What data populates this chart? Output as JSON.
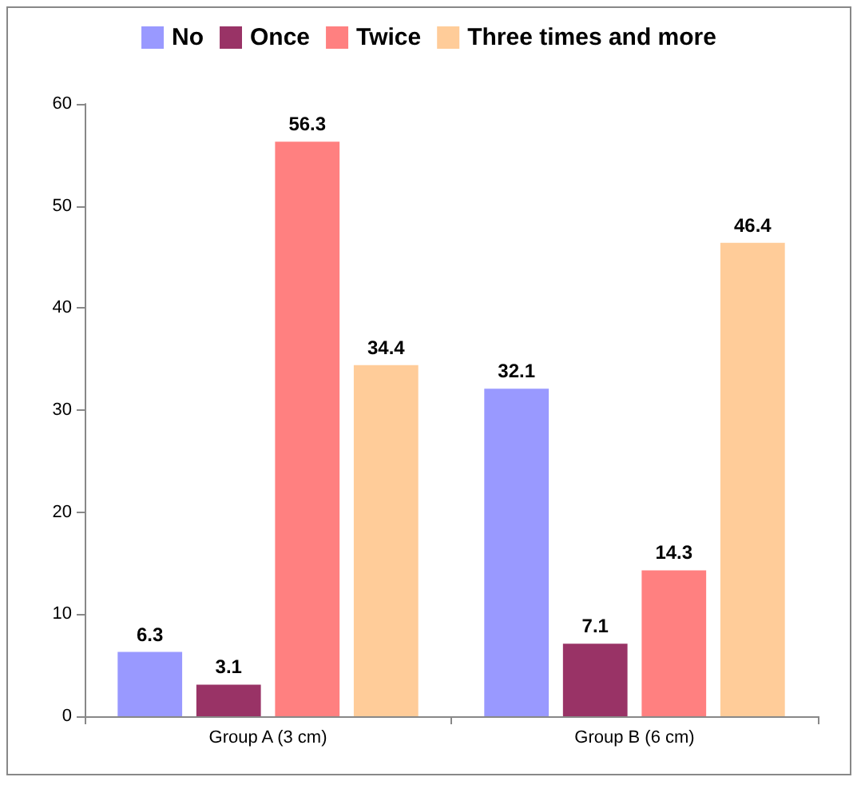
{
  "chart_data": {
    "type": "bar",
    "categories": [
      "Group A (3 cm)",
      "Group B (6 cm)"
    ],
    "series": [
      {
        "name": "No",
        "color": "#9999ff",
        "values": [
          6.3,
          32.1
        ]
      },
      {
        "name": "Once",
        "color": "#993366",
        "values": [
          3.1,
          7.1
        ]
      },
      {
        "name": "Twice",
        "color": "#ff8080",
        "values": [
          56.3,
          14.3
        ]
      },
      {
        "name": "Three times and more",
        "color": "#ffcc99",
        "values": [
          34.4,
          46.4
        ]
      }
    ],
    "ylim": [
      0,
      60
    ],
    "yticks": [
      0,
      10,
      20,
      30,
      40,
      50,
      60
    ],
    "grid": false,
    "legend": "top",
    "data_labels": true
  }
}
